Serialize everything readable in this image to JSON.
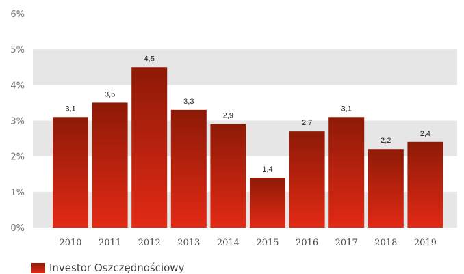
{
  "chart_data": {
    "type": "bar",
    "categories": [
      "2010",
      "2011",
      "2012",
      "2013",
      "2014",
      "2015",
      "2016",
      "2017",
      "2018",
      "2019"
    ],
    "series": [
      {
        "name": "Investor Oszczędnościowy",
        "values": [
          3.1,
          3.5,
          4.5,
          3.3,
          2.9,
          1.4,
          2.7,
          3.1,
          2.2,
          2.4
        ],
        "labels": [
          "3,1",
          "3,5",
          "4,5",
          "3,3",
          "2,9",
          "1,4",
          "2,7",
          "3,1",
          "2,2",
          "2,4"
        ]
      }
    ],
    "yticks": [
      {
        "value": 0,
        "label": "0%"
      },
      {
        "value": 1,
        "label": "1%"
      },
      {
        "value": 2,
        "label": "2%"
      },
      {
        "value": 3,
        "label": "3%"
      },
      {
        "value": 4,
        "label": "4%"
      },
      {
        "value": 5,
        "label": "5%"
      },
      {
        "value": 6,
        "label": "6%"
      }
    ],
    "ylim": [
      0,
      6
    ],
    "grid": "alternating bands",
    "legend_position": "bottom-left",
    "colors": {
      "bar_top": "#8d1a06",
      "bar_bottom": "#e22a15",
      "band": "#e6e6e6"
    }
  }
}
